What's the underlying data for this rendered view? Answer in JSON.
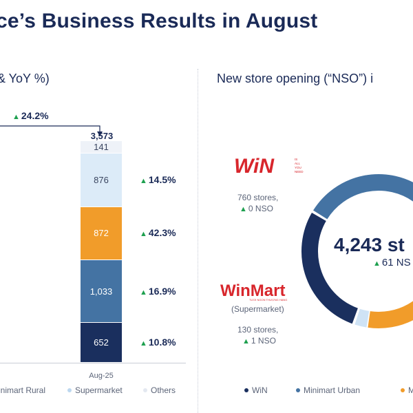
{
  "header": {
    "title": "ce’s Business Results in August",
    "left_subtitle": "& YoY %)",
    "right_subtitle": "New store opening (“NSO”) i"
  },
  "chart_data": [
    {
      "type": "bar",
      "stacked": true,
      "categories": [
        "Aug-25"
      ],
      "total": "3,573",
      "total_growth": "24.2%",
      "series": [
        {
          "name": "",
          "value": 652,
          "label": "652",
          "yoy": "10.8%",
          "color": "#1a2f5e"
        },
        {
          "name": "",
          "value": 1033,
          "label": "1,033",
          "yoy": "16.9%",
          "color": "#4473a3"
        },
        {
          "name": "",
          "value": 872,
          "label": "872",
          "yoy": "42.3%",
          "color": "#f19c2a"
        },
        {
          "name": "Supermarket",
          "value": 876,
          "label": "876",
          "yoy": "14.5%",
          "color": "#dcebf8"
        },
        {
          "name": "Others",
          "value": 141,
          "label": "141",
          "yoy": "",
          "color": "#eef2f8"
        }
      ],
      "legend": [
        {
          "label": "inimart Rural",
          "color": "#f19c2a"
        },
        {
          "label": "Supermarket",
          "color": "#bcd7ef"
        },
        {
          "label": "Others",
          "color": "#e3e8f0"
        }
      ]
    },
    {
      "type": "pie",
      "center_total": "4,243 st",
      "center_nso": "61 NS",
      "segments": [
        {
          "name": "WiN",
          "color": "#1a2f5e",
          "value": 760
        },
        {
          "name": "Minimart Urban",
          "color": "#4473a3"
        },
        {
          "name": "WinMart",
          "color": "#cfe3f5",
          "value": 130
        },
        {
          "name": "M",
          "color": "#f19c2a"
        }
      ],
      "legend": [
        {
          "label": "WiN",
          "color": "#1a2f5e"
        },
        {
          "label": "Minimart Urban",
          "color": "#4473a3"
        },
        {
          "label": "M",
          "color": "#f19c2a"
        }
      ]
    }
  ],
  "brands": {
    "win": {
      "logo": "WiN",
      "tagline": "IS ALL YOU NEED",
      "stores": "760 stores,",
      "nso": "0 NSO"
    },
    "winmart": {
      "logo": "WinMart",
      "tagline": "TƯƠI NGON THƯỢNG HẠNG",
      "category": "(Supermarket)",
      "stores": "130 stores,",
      "nso": "1 NSO"
    }
  },
  "colors": {
    "up_arrow": "#1ea04f",
    "brand_red": "#d8262c",
    "navy": "#1a2a57"
  }
}
